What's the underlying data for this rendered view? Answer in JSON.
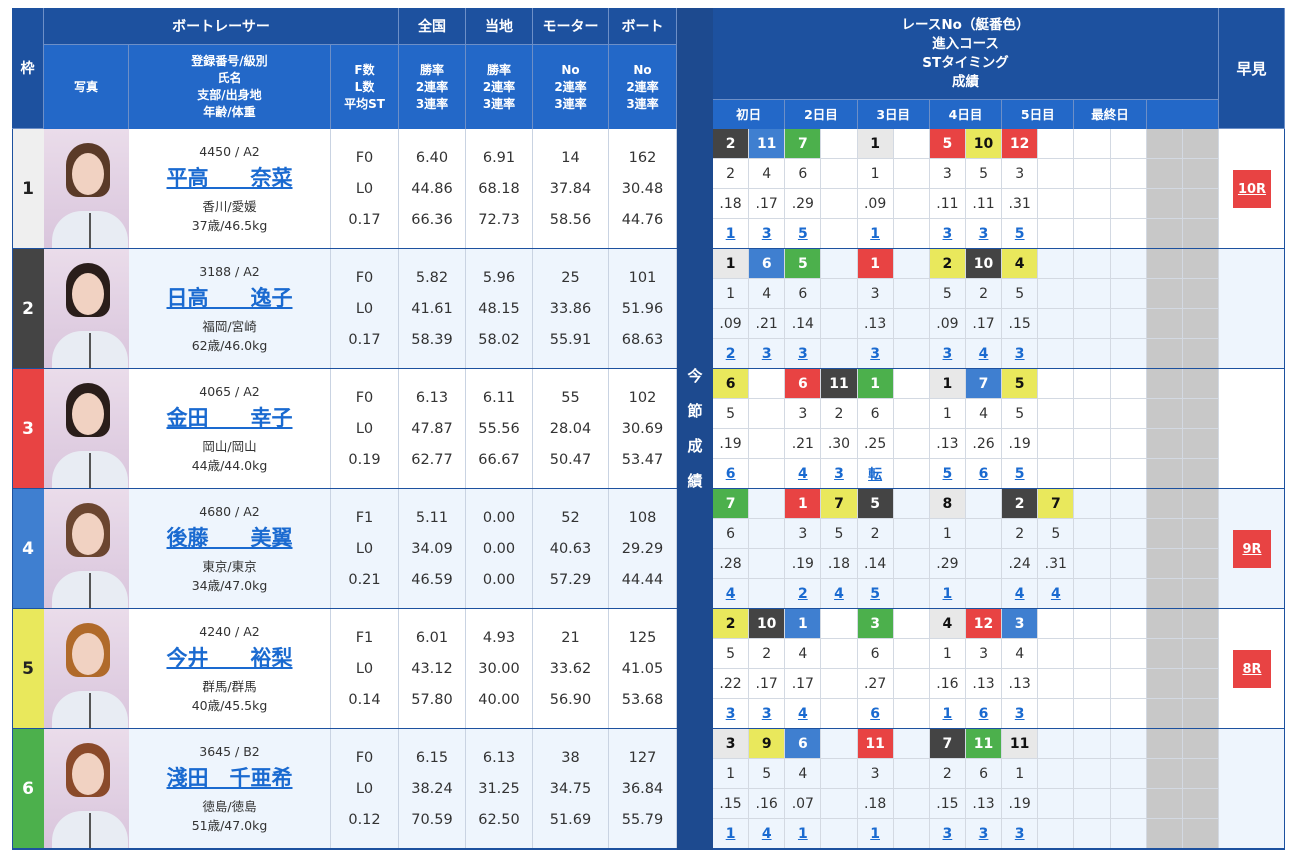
{
  "header": {
    "waku": "枠",
    "boat_racer": "ボートレーサー",
    "national": "全国",
    "local": "当地",
    "motor": "モーター",
    "boat": "ボート",
    "photo": "写真",
    "profile": "登録番号/級別\n氏名\n支部/出身地\n年齢/体重",
    "fl": "F数\nL数\n平均ST",
    "national_sub": "勝率\n2連率\n3連率",
    "local_sub": "勝率\n2連率\n3連率",
    "motor_sub": "No\n2連率\n3連率",
    "boat_sub": "No\n2連率\n3連率",
    "series_label": "今\n節\n成\n績",
    "race_info": "レースNo（艇番色）\n進入コース\nSTタイミング\n成績",
    "quick": "早見",
    "days": [
      "初日",
      "2日目",
      "3日目",
      "4日目",
      "5日目",
      "最終日",
      ""
    ]
  },
  "boat_colors": {
    "1": "#e8e8e8",
    "2": "#444444",
    "3": "#e84343",
    "4": "#3f7fd0",
    "5": "#e9e85c",
    "6": "#4cb04c"
  },
  "racers": [
    {
      "waku": "1",
      "regno": "4450 / A2",
      "name": "平高　　奈菜",
      "branch": "香川/愛媛",
      "age_weight": "37歳/46.5kg",
      "f": "F0",
      "l": "L0",
      "st": "0.17",
      "national": [
        "6.40",
        "44.86",
        "66.36"
      ],
      "local": [
        "6.91",
        "68.18",
        "72.73"
      ],
      "motor": [
        "14",
        "37.84",
        "58.56"
      ],
      "boat": [
        "162",
        "30.48",
        "44.76"
      ],
      "races": [
        "2",
        "11",
        "7",
        "",
        "1",
        "",
        "5",
        "10",
        "12",
        ""
      ],
      "courses": [
        "2",
        "4",
        "6",
        "",
        "1",
        "",
        "3",
        "5",
        "3",
        ""
      ],
      "st_times": [
        ".18",
        ".17",
        ".29",
        "",
        ".09",
        "",
        ".11",
        ".11",
        ".31",
        ""
      ],
      "results": [
        "1",
        "3",
        "5",
        "",
        "1",
        "",
        "3",
        "3",
        "5",
        ""
      ],
      "quick": "10R",
      "hair": "#5a3a28"
    },
    {
      "waku": "2",
      "regno": "3188 / A2",
      "name": "日高　　逸子",
      "branch": "福岡/宮崎",
      "age_weight": "62歳/46.0kg",
      "f": "F0",
      "l": "L0",
      "st": "0.17",
      "national": [
        "5.82",
        "41.61",
        "58.39"
      ],
      "local": [
        "5.96",
        "48.15",
        "58.02"
      ],
      "motor": [
        "25",
        "33.86",
        "55.91"
      ],
      "boat": [
        "101",
        "51.96",
        "68.63"
      ],
      "races": [
        "1",
        "6",
        "5",
        "",
        "1",
        "",
        "2",
        "10",
        "4",
        ""
      ],
      "courses": [
        "1",
        "4",
        "6",
        "",
        "3",
        "",
        "5",
        "2",
        "5",
        ""
      ],
      "st_times": [
        ".09",
        ".21",
        ".14",
        "",
        ".13",
        "",
        ".09",
        ".17",
        ".15",
        ""
      ],
      "results": [
        "2",
        "3",
        "3",
        "",
        "3",
        "",
        "3",
        "4",
        "3",
        ""
      ],
      "quick": "",
      "hair": "#2a1e1a"
    },
    {
      "waku": "3",
      "regno": "4065 / A2",
      "name": "金田　　幸子",
      "branch": "岡山/岡山",
      "age_weight": "44歳/44.0kg",
      "f": "F0",
      "l": "L0",
      "st": "0.19",
      "national": [
        "6.13",
        "47.87",
        "62.77"
      ],
      "local": [
        "6.11",
        "55.56",
        "66.67"
      ],
      "motor": [
        "55",
        "28.04",
        "50.47"
      ],
      "boat": [
        "102",
        "30.69",
        "53.47"
      ],
      "races": [
        "6",
        "",
        "6",
        "11",
        "1",
        "",
        "1",
        "7",
        "5",
        ""
      ],
      "courses": [
        "5",
        "",
        "3",
        "2",
        "6",
        "",
        "1",
        "4",
        "5",
        ""
      ],
      "st_times": [
        ".19",
        "",
        ".21",
        ".30",
        ".25",
        "",
        ".13",
        ".26",
        ".19",
        ""
      ],
      "results": [
        "6",
        "",
        "4",
        "3",
        "転",
        "",
        "5",
        "6",
        "5",
        ""
      ],
      "quick": "",
      "hair": "#2a1e1a"
    },
    {
      "waku": "4",
      "regno": "4680 / A2",
      "name": "後藤　　美翼",
      "branch": "東京/東京",
      "age_weight": "34歳/47.0kg",
      "f": "F1",
      "l": "L0",
      "st": "0.21",
      "national": [
        "5.11",
        "34.09",
        "46.59"
      ],
      "local": [
        "0.00",
        "0.00",
        "0.00"
      ],
      "motor": [
        "52",
        "40.63",
        "57.29"
      ],
      "boat": [
        "108",
        "29.29",
        "44.44"
      ],
      "races": [
        "7",
        "",
        "1",
        "7",
        "5",
        "",
        "8",
        "",
        "2",
        "7"
      ],
      "courses": [
        "6",
        "",
        "3",
        "5",
        "2",
        "",
        "1",
        "",
        "2",
        "5"
      ],
      "st_times": [
        ".28",
        "",
        ".19",
        ".18",
        ".14",
        "",
        ".29",
        "",
        ".24",
        ".31"
      ],
      "results": [
        "4",
        "",
        "2",
        "4",
        "5",
        "",
        "1",
        "",
        "4",
        "4"
      ],
      "quick": "9R",
      "hair": "#6b4630"
    },
    {
      "waku": "5",
      "regno": "4240 / A2",
      "name": "今井　　裕梨",
      "branch": "群馬/群馬",
      "age_weight": "40歳/45.5kg",
      "f": "F1",
      "l": "L0",
      "st": "0.14",
      "national": [
        "6.01",
        "43.12",
        "57.80"
      ],
      "local": [
        "4.93",
        "30.00",
        "40.00"
      ],
      "motor": [
        "21",
        "33.62",
        "56.90"
      ],
      "boat": [
        "125",
        "41.05",
        "53.68"
      ],
      "races": [
        "2",
        "10",
        "1",
        "",
        "3",
        "",
        "4",
        "12",
        "3",
        ""
      ],
      "courses": [
        "5",
        "2",
        "4",
        "",
        "6",
        "",
        "1",
        "3",
        "4",
        ""
      ],
      "st_times": [
        ".22",
        ".17",
        ".17",
        "",
        ".27",
        "",
        ".16",
        ".13",
        ".13",
        ""
      ],
      "results": [
        "3",
        "3",
        "4",
        "",
        "6",
        "",
        "1",
        "6",
        "3",
        ""
      ],
      "quick": "8R",
      "hair": "#b06a2a"
    },
    {
      "waku": "6",
      "regno": "3645 / B2",
      "name": "淺田　千亜希",
      "branch": "徳島/徳島",
      "age_weight": "51歳/47.0kg",
      "f": "F0",
      "l": "L0",
      "st": "0.12",
      "national": [
        "6.15",
        "38.24",
        "70.59"
      ],
      "local": [
        "6.13",
        "31.25",
        "62.50"
      ],
      "motor": [
        "38",
        "34.75",
        "51.69"
      ],
      "boat": [
        "127",
        "36.84",
        "55.79"
      ],
      "races": [
        "3",
        "9",
        "6",
        "",
        "11",
        "",
        "7",
        "11",
        "11",
        ""
      ],
      "courses": [
        "1",
        "5",
        "4",
        "",
        "3",
        "",
        "2",
        "6",
        "1",
        ""
      ],
      "st_times": [
        ".15",
        ".16",
        ".07",
        "",
        ".18",
        "",
        ".15",
        ".13",
        ".19",
        ""
      ],
      "results": [
        "1",
        "4",
        "1",
        "",
        "1",
        "",
        "3",
        "3",
        "3",
        ""
      ],
      "quick": "",
      "hair": "#8a4a2a"
    }
  ]
}
